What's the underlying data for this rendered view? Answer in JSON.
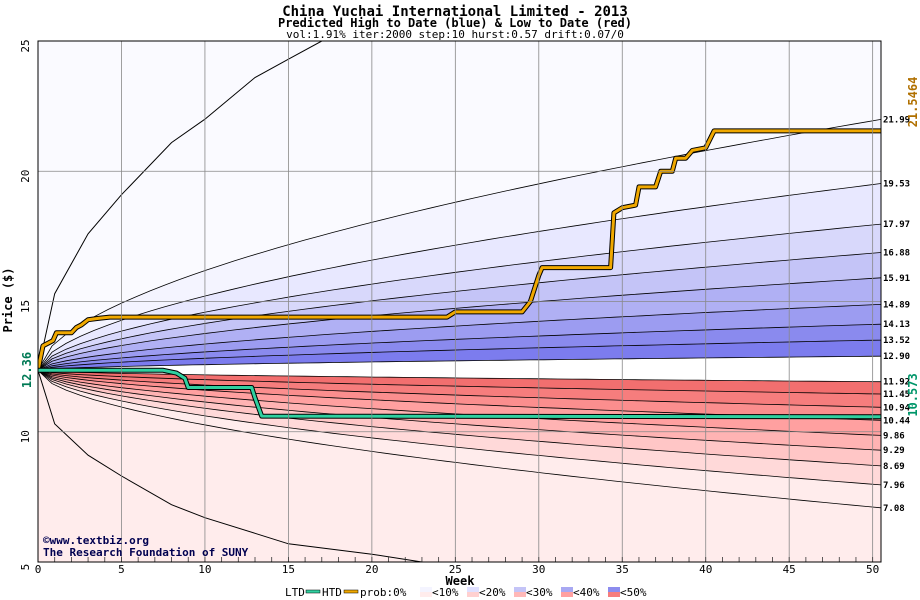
{
  "chart_data": {
    "type": "area",
    "title": "China Yuchai International Limited - 2013",
    "subtitle": "Predicted High to Date (blue) &  Low to Date (red)",
    "params_line": "vol:1.91% iter:2000 step:10 hurst:0.57 drift:0.07/0",
    "xlabel": "Week",
    "ylabel": "Price ($)",
    "xlim": [
      0,
      50.5
    ],
    "ylim": [
      5,
      25
    ],
    "xticks": [
      0,
      5,
      10,
      15,
      20,
      25,
      30,
      35,
      40,
      45,
      50
    ],
    "yticks": [
      5,
      10,
      15,
      20,
      25
    ],
    "start_price": 12.36,
    "start_price_label": "12.36",
    "grid": true,
    "high_quantiles_final": [
      12.9,
      13.52,
      14.13,
      14.89,
      15.91,
      16.88,
      17.97,
      19.53,
      21.99
    ],
    "low_quantiles_final": [
      11.92,
      11.45,
      10.94,
      10.44,
      9.86,
      9.29,
      8.69,
      7.96,
      7.08
    ],
    "right_labels": [
      "21.99",
      "19.53",
      "17.97",
      "16.88",
      "15.91",
      "14.89",
      "14.13",
      "13.52",
      "12.90",
      "11.92",
      "11.45",
      "10.94",
      "10.44",
      "9.86",
      "9.29",
      "8.69",
      "7.96",
      "7.08"
    ],
    "htd_series": {
      "name": "HTD",
      "x": [
        0,
        0.3,
        0.9,
        1.1,
        2.0,
        2.3,
        2.6,
        3.0,
        3.6,
        4.3,
        5.0,
        10.0,
        20.0,
        24.5,
        25.0,
        29.0,
        29.5,
        30.0,
        30.2,
        34.3,
        34.5,
        35.0,
        35.8,
        36.0,
        37.0,
        37.3,
        38.0,
        38.2,
        38.8,
        39.2,
        40.0,
        40.5,
        50.5
      ],
      "y": [
        12.36,
        13.3,
        13.5,
        13.8,
        13.8,
        14.0,
        14.1,
        14.3,
        14.35,
        14.4,
        14.4,
        14.4,
        14.4,
        14.4,
        14.6,
        14.6,
        15.0,
        16.0,
        16.3,
        16.3,
        18.4,
        18.6,
        18.7,
        19.4,
        19.4,
        20.0,
        20.0,
        20.5,
        20.5,
        20.8,
        20.9,
        21.55,
        21.55
      ],
      "final_value": 21.5464,
      "final_label": "21.5464",
      "color": "#f0a800"
    },
    "ltd_series": {
      "name": "LTD",
      "x": [
        0,
        7.5,
        8.3,
        8.8,
        9.0,
        9.1,
        12.8,
        13.0,
        13.4,
        50.5
      ],
      "y": [
        12.36,
        12.36,
        12.25,
        12.05,
        11.7,
        11.7,
        11.7,
        11.3,
        10.6,
        10.573
      ],
      "final_value": 10.573,
      "final_label": "10.573",
      "color": "#30d0a0"
    },
    "extreme_curves": {
      "high": {
        "x": [
          0,
          1,
          3,
          5,
          8,
          10,
          13,
          15,
          17
        ],
        "y": [
          12.36,
          15.3,
          17.6,
          19.1,
          21.1,
          22.0,
          23.6,
          24.3,
          25.0
        ]
      },
      "low": {
        "x": [
          0,
          1,
          3,
          5,
          8,
          10,
          13,
          15,
          20,
          23
        ],
        "y": [
          12.36,
          10.3,
          9.1,
          8.3,
          7.2,
          6.7,
          6.1,
          5.7,
          5.3,
          5.0
        ]
      }
    },
    "band_colors": {
      "high": [
        "#f4f4ff",
        "#e8e8ff",
        "#d8d8fb",
        "#c4c4f7",
        "#b0b0f4",
        "#9c9cf1",
        "#8a8aee",
        "#7c7cee"
      ],
      "low": [
        "#ffecec",
        "#ffd9d9",
        "#ffc6c6",
        "#ffb3b3",
        "#ffa0a0",
        "#fb8e8e",
        "#f67d7d",
        "#f26f6f"
      ],
      "mid": "#ffffff",
      "outer_high": "#fafaff",
      "outer_low": "#fff5f5"
    }
  },
  "credits": {
    "copyright": "©www.textbiz.org",
    "org": "The Research Foundation of SUNY"
  },
  "legend": {
    "ltd_label": "LTD",
    "htd_label": "HTD",
    "prob_label": "prob:0%",
    "items": [
      "<10%",
      "<20%",
      "<30%",
      "<40%",
      "<50%"
    ],
    "colors": [
      "#f4f4ff",
      "#e0e0ff",
      "#c4c4f7",
      "#a8a8f2",
      "#8c8cee"
    ],
    "red_colors": [
      "#ffecec",
      "#ffd0d0",
      "#ffb8b8",
      "#ffa0a0",
      "#f67d7d"
    ]
  }
}
